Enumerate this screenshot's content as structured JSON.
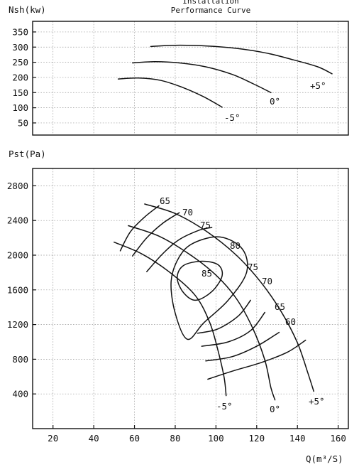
{
  "chart_data": {
    "type": "line",
    "title_line1": "Installation",
    "title_line2": "Performance Curve",
    "x": {
      "label": "Q(m³/S)",
      "range": [
        10,
        165
      ],
      "ticks": [
        20,
        40,
        60,
        80,
        100,
        120,
        140,
        160
      ]
    },
    "power_chart": {
      "ylabel": "Nsh(kw)",
      "range": [
        10,
        385
      ],
      "ticks": [
        50,
        100,
        150,
        200,
        250,
        300,
        350
      ],
      "grid": true,
      "series": [
        {
          "name": "+5°",
          "points": [
            [
              68,
              302
            ],
            [
              80,
              306
            ],
            [
              95,
              304
            ],
            [
              110,
              296
            ],
            [
              125,
              280
            ],
            [
              138,
              258
            ],
            [
              150,
              235
            ],
            [
              157,
              212
            ]
          ]
        },
        {
          "name": "0°",
          "points": [
            [
              59,
              248
            ],
            [
              70,
              252
            ],
            [
              82,
              248
            ],
            [
              95,
              235
            ],
            [
              108,
              210
            ],
            [
              118,
              180
            ],
            [
              127,
              150
            ]
          ]
        },
        {
          "name": "-5°",
          "points": [
            [
              52,
              195
            ],
            [
              62,
              198
            ],
            [
              73,
              190
            ],
            [
              84,
              166
            ],
            [
              94,
              136
            ],
            [
              103,
              102
            ]
          ]
        }
      ]
    },
    "pressure_chart": {
      "ylabel": "Pst(Pa)",
      "range": [
        0,
        3000
      ],
      "ticks": [
        400,
        800,
        1200,
        1600,
        2000,
        2400,
        2800
      ],
      "grid": true,
      "blade_angle_curves": [
        {
          "name": "+5°",
          "points": [
            [
              65,
              2590
            ],
            [
              80,
              2480
            ],
            [
              95,
              2280
            ],
            [
              110,
              2000
            ],
            [
              122,
              1690
            ],
            [
              132,
              1350
            ],
            [
              140,
              990
            ],
            [
              145,
              650
            ],
            [
              148,
              430
            ]
          ]
        },
        {
          "name": "0°",
          "points": [
            [
              57,
              2340
            ],
            [
              72,
              2220
            ],
            [
              87,
              2010
            ],
            [
              100,
              1770
            ],
            [
              110,
              1500
            ],
            [
              118,
              1160
            ],
            [
              124,
              790
            ],
            [
              127,
              470
            ],
            [
              129,
              330
            ]
          ]
        },
        {
          "name": "-5°",
          "points": [
            [
              50,
              2150
            ],
            [
              64,
              2010
            ],
            [
              78,
              1790
            ],
            [
              90,
              1530
            ],
            [
              97,
              1220
            ],
            [
              101,
              900
            ],
            [
              104,
              590
            ],
            [
              105,
              380
            ]
          ]
        }
      ],
      "efficiency_curves": [
        {
          "name": "65",
          "points": [
            [
              53,
              2050
            ],
            [
              58,
              2270
            ],
            [
              65,
              2440
            ],
            [
              72,
              2570
            ]
          ]
        },
        {
          "name": "70",
          "points": [
            [
              59,
              1990
            ],
            [
              66,
              2200
            ],
            [
              74,
              2370
            ],
            [
              82,
              2490
            ]
          ]
        },
        {
          "name": "75",
          "points": [
            [
              66,
              1810
            ],
            [
              74,
              2020
            ],
            [
              82,
              2180
            ],
            [
              92,
              2290
            ],
            [
              98,
              2320
            ]
          ]
        },
        {
          "name": "80",
          "closed": true,
          "points": [
            [
              86,
              1030
            ],
            [
              94,
              1220
            ],
            [
              106,
              1480
            ],
            [
              115,
              1800
            ],
            [
              113,
              2070
            ],
            [
              102,
              2210
            ],
            [
              89,
              2140
            ],
            [
              82,
              1980
            ],
            [
              78,
              1700
            ],
            [
              80,
              1330
            ],
            [
              86,
              1030
            ]
          ]
        },
        {
          "name": "85",
          "closed": true,
          "points": [
            [
              90,
              1480
            ],
            [
              98,
              1580
            ],
            [
              103,
              1760
            ],
            [
              101,
              1890
            ],
            [
              93,
              1930
            ],
            [
              84,
              1880
            ],
            [
              81,
              1740
            ],
            [
              84,
              1570
            ],
            [
              90,
              1480
            ]
          ]
        },
        {
          "name": "75",
          "points": [
            [
              91,
              1100
            ],
            [
              101,
              1150
            ],
            [
              111,
              1300
            ],
            [
              117,
              1480
            ]
          ]
        },
        {
          "name": "70",
          "points": [
            [
              93,
              950
            ],
            [
              106,
              1000
            ],
            [
              117,
              1130
            ],
            [
              124,
              1340
            ]
          ]
        },
        {
          "name": "65",
          "points": [
            [
              95,
              780
            ],
            [
              108,
              830
            ],
            [
              120,
              950
            ],
            [
              131,
              1110
            ]
          ]
        },
        {
          "name": "60",
          "points": [
            [
              96,
              570
            ],
            [
              109,
              670
            ],
            [
              122,
              760
            ],
            [
              135,
              880
            ],
            [
              144,
              1020
            ]
          ]
        }
      ],
      "annotations": [
        "65",
        "70",
        "75",
        "80",
        "85",
        "75",
        "70",
        "65",
        "60",
        "-5°",
        "0°",
        "+5°"
      ]
    }
  }
}
